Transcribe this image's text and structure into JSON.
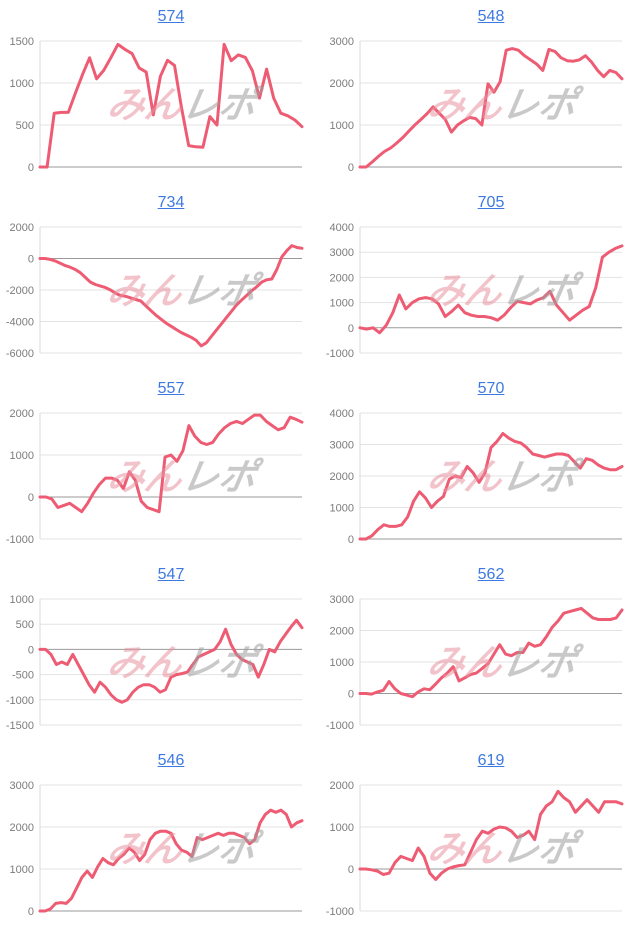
{
  "style": {
    "line_color": "#ee5c74",
    "title_link_color": "#3d79e0",
    "axis_label_color": "#7c7c7c",
    "gridline_color": "#e3e3e3",
    "zero_line_color": "#9a9a9a",
    "axis_line_color": "#dadada",
    "watermark_pink_color": "#e8939f",
    "watermark_gray_color": "#9e9e9e"
  },
  "watermark": {
    "pink_text": "みん",
    "gray_text": "レポ"
  },
  "chart_data": [
    {
      "type": "line",
      "title": "574",
      "ylim": [
        0,
        1500
      ],
      "yticks": [
        0,
        500,
        1000,
        1500
      ],
      "values": [
        0,
        0,
        640,
        650,
        650,
        880,
        1100,
        1300,
        1050,
        1150,
        1300,
        1460,
        1400,
        1350,
        1180,
        1130,
        620,
        1080,
        1270,
        1210,
        700,
        255,
        240,
        235,
        600,
        500,
        1460,
        1265,
        1335,
        1305,
        1145,
        820,
        1165,
        820,
        640,
        610,
        560,
        480
      ]
    },
    {
      "type": "line",
      "title": "548",
      "ylim": [
        0,
        3000
      ],
      "yticks": [
        0,
        1000,
        2000,
        3000
      ],
      "values": [
        0,
        0,
        120,
        250,
        370,
        450,
        570,
        700,
        850,
        1000,
        1130,
        1270,
        1430,
        1280,
        1130,
        830,
        1000,
        1100,
        1180,
        1150,
        1000,
        1980,
        1780,
        2030,
        2780,
        2820,
        2780,
        2650,
        2550,
        2450,
        2300,
        2800,
        2750,
        2600,
        2530,
        2520,
        2550,
        2650,
        2500,
        2300,
        2150,
        2300,
        2250,
        2100
      ]
    },
    {
      "type": "line",
      "title": "734",
      "ylim": [
        -6000,
        2000
      ],
      "yticks": [
        -6000,
        -4000,
        -2000,
        0,
        2000
      ],
      "values": [
        0,
        0,
        -60,
        -150,
        -300,
        -450,
        -550,
        -700,
        -900,
        -1200,
        -1500,
        -1650,
        -1750,
        -1850,
        -2000,
        -2200,
        -2350,
        -2400,
        -2500,
        -2600,
        -2700,
        -3000,
        -3300,
        -3600,
        -3850,
        -4100,
        -4300,
        -4500,
        -4700,
        -4850,
        -5000,
        -5200,
        -5550,
        -5350,
        -4950,
        -4550,
        -4150,
        -3750,
        -3350,
        -2950,
        -2650,
        -2350,
        -2050,
        -1800,
        -1500,
        -1350,
        -1300,
        -700,
        100,
        500,
        820,
        700,
        650
      ]
    },
    {
      "type": "line",
      "title": "705",
      "ylim": [
        -1000,
        4000
      ],
      "yticks": [
        -1000,
        0,
        1000,
        2000,
        3000,
        4000
      ],
      "values": [
        0,
        -50,
        0,
        -200,
        100,
        600,
        1300,
        750,
        1000,
        1150,
        1200,
        1150,
        950,
        450,
        650,
        900,
        600,
        500,
        450,
        450,
        400,
        300,
        500,
        800,
        1050,
        1000,
        950,
        1100,
        1200,
        1450,
        900,
        600,
        300,
        500,
        700,
        850,
        1600,
        2800,
        3000,
        3150,
        3250
      ]
    },
    {
      "type": "line",
      "title": "557",
      "ylim": [
        -1000,
        2000
      ],
      "yticks": [
        -1000,
        0,
        1000,
        2000
      ],
      "values": [
        0,
        0,
        -50,
        -250,
        -200,
        -150,
        -250,
        -350,
        -150,
        100,
        300,
        450,
        450,
        400,
        200,
        600,
        400,
        -100,
        -250,
        -300,
        -350,
        950,
        1000,
        850,
        1100,
        1700,
        1450,
        1300,
        1250,
        1300,
        1500,
        1650,
        1750,
        1800,
        1750,
        1850,
        1950,
        1950,
        1800,
        1700,
        1600,
        1650,
        1900,
        1850,
        1780
      ]
    },
    {
      "type": "line",
      "title": "570",
      "ylim": [
        0,
        4000
      ],
      "yticks": [
        0,
        1000,
        2000,
        3000,
        4000
      ],
      "values": [
        0,
        0,
        100,
        300,
        450,
        400,
        400,
        450,
        700,
        1200,
        1500,
        1300,
        1000,
        1200,
        1350,
        1900,
        2000,
        1950,
        2300,
        2100,
        1800,
        2100,
        2900,
        3100,
        3350,
        3200,
        3100,
        3050,
        2900,
        2700,
        2650,
        2600,
        2650,
        2700,
        2700,
        2650,
        2450,
        2250,
        2550,
        2500,
        2350,
        2250,
        2200,
        2200,
        2300
      ]
    },
    {
      "type": "line",
      "title": "547",
      "ylim": [
        -1500,
        1000
      ],
      "yticks": [
        -1500,
        -1000,
        -500,
        0,
        500,
        1000
      ],
      "values": [
        0,
        0,
        -100,
        -300,
        -250,
        -300,
        -100,
        -300,
        -500,
        -700,
        -850,
        -650,
        -750,
        -900,
        -1000,
        -1050,
        -1000,
        -850,
        -750,
        -700,
        -700,
        -750,
        -850,
        -800,
        -550,
        -500,
        -480,
        -450,
        -300,
        -150,
        -100,
        -50,
        0,
        150,
        400,
        100,
        -100,
        -200,
        -250,
        -300,
        -550,
        -300,
        0,
        -50,
        150,
        300,
        450,
        580,
        430
      ]
    },
    {
      "type": "line",
      "title": "562",
      "ylim": [
        -1000,
        3000
      ],
      "yticks": [
        -1000,
        0,
        1000,
        2000,
        3000
      ],
      "values": [
        0,
        0,
        -20,
        50,
        100,
        380,
        150,
        0,
        -50,
        -100,
        50,
        150,
        120,
        300,
        500,
        650,
        850,
        400,
        500,
        600,
        650,
        800,
        950,
        1250,
        1550,
        1250,
        1200,
        1300,
        1300,
        1600,
        1500,
        1550,
        1800,
        2100,
        2300,
        2550,
        2600,
        2650,
        2700,
        2550,
        2400,
        2350,
        2350,
        2350,
        2400,
        2650
      ]
    },
    {
      "type": "line",
      "title": "546",
      "ylim": [
        0,
        3000
      ],
      "yticks": [
        0,
        1000,
        2000,
        3000
      ],
      "values": [
        0,
        0,
        50,
        180,
        200,
        180,
        300,
        550,
        800,
        950,
        800,
        1050,
        1250,
        1150,
        1100,
        1250,
        1350,
        1500,
        1400,
        1200,
        1350,
        1700,
        1850,
        1900,
        1900,
        1850,
        1600,
        1450,
        1400,
        1300,
        1750,
        1700,
        1750,
        1800,
        1850,
        1800,
        1850,
        1850,
        1800,
        1750,
        1600,
        1700,
        2100,
        2300,
        2400,
        2350,
        2400,
        2300,
        2000,
        2100,
        2150
      ]
    },
    {
      "type": "line",
      "title": "619",
      "ylim": [
        -1000,
        2000
      ],
      "yticks": [
        -1000,
        0,
        1000,
        2000
      ],
      "values": [
        0,
        0,
        -20,
        -50,
        -130,
        -100,
        150,
        300,
        250,
        200,
        500,
        300,
        -100,
        -250,
        -100,
        0,
        50,
        80,
        100,
        400,
        700,
        900,
        850,
        950,
        1000,
        980,
        900,
        750,
        800,
        900,
        700,
        1300,
        1500,
        1600,
        1850,
        1700,
        1600,
        1350,
        1500,
        1650,
        1500,
        1350,
        1600,
        1600,
        1600,
        1550
      ]
    }
  ]
}
